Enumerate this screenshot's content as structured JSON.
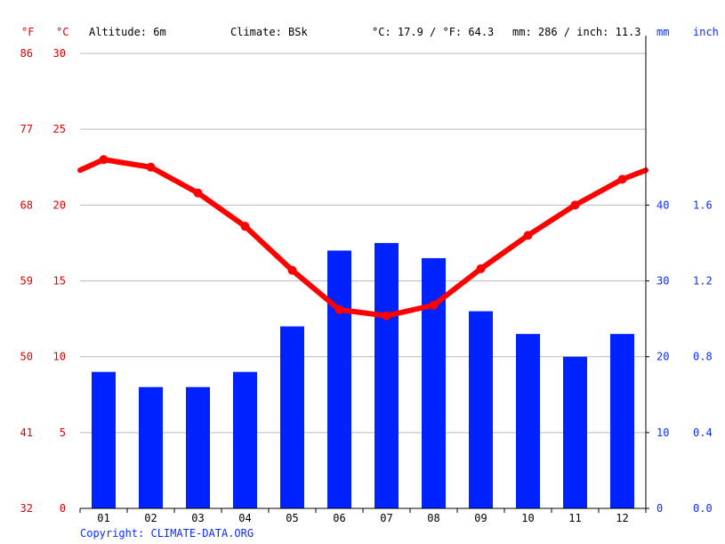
{
  "header": {
    "unit_f": "°F",
    "unit_c": "°C",
    "altitude": "Altitude: 6m",
    "climate": "Climate: BSk",
    "temperature": "°C: 17.9 / °F: 64.3",
    "precipitation": "mm: 286 / inch: 11.3",
    "unit_mm": "mm",
    "unit_inch": "inch"
  },
  "footer": {
    "copyright": "Copyright: CLIMATE-DATA.ORG"
  },
  "colors": {
    "temperature": "#ff0000",
    "precipitation": "#0022ff",
    "temp_axis": "#e00000",
    "precip_axis": "#0a2dff"
  },
  "chart_data": {
    "type": "bar",
    "categories": [
      "01",
      "02",
      "03",
      "04",
      "05",
      "06",
      "07",
      "08",
      "09",
      "10",
      "11",
      "12"
    ],
    "series": [
      {
        "type": "bar",
        "axis": "right",
        "values": [
          18,
          16,
          16,
          18,
          24,
          34,
          35,
          33,
          26,
          23,
          20,
          23
        ]
      },
      {
        "type": "line",
        "axis": "left",
        "values": [
          23.0,
          22.5,
          20.8,
          18.6,
          15.7,
          13.1,
          12.7,
          13.4,
          15.8,
          18.0,
          20.0,
          21.7
        ],
        "edge_values": [
          22.3,
          22.3
        ]
      }
    ],
    "y_left": {
      "ylim": [
        0,
        30
      ],
      "ticks_c": [
        "0",
        "5",
        "10",
        "15",
        "20",
        "25",
        "30"
      ],
      "ticks_f": [
        "32",
        "41",
        "50",
        "59",
        "68",
        "77",
        "86"
      ]
    },
    "y_right": {
      "ylim": [
        0,
        60
      ],
      "ticks_mm": [
        "0",
        "10",
        "20",
        "30",
        "40"
      ],
      "ticks_inch": [
        "0.0",
        "0.4",
        "0.8",
        "1.2",
        "1.6"
      ]
    },
    "grid": true
  }
}
